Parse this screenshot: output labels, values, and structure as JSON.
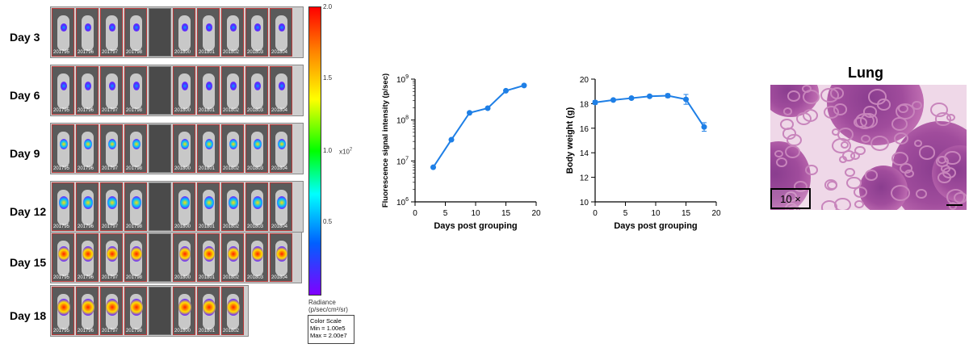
{
  "days": [
    "Day 3",
    "Day 6",
    "Day 9",
    "Day 12",
    "Day 15",
    "Day 18"
  ],
  "colorbar": {
    "ticks": [
      "2.0",
      "1.5",
      "1.0",
      "0.5"
    ],
    "multiplier": "x10",
    "exponent": "7",
    "unit_label": "Radiance",
    "unit_value": "(p/sec/cm²/sr)",
    "scale_title": "Color Scale",
    "scale_min": "Min = 1.00e5",
    "scale_max": "Max = 2.00e7"
  },
  "mouse_ids": [
    "201795",
    "201796",
    "201797",
    "201798",
    "201799",
    "201800",
    "201801",
    "201802",
    "201803",
    "201804"
  ],
  "chart_data": [
    {
      "type": "line",
      "xlabel": "Days post grouping",
      "ylabel": "Fluorescence signal intensity (p/sec)",
      "x": [
        3,
        6,
        9,
        12,
        15,
        18
      ],
      "y": [
        7000000,
        33000000,
        150000000,
        195000000,
        520000000,
        700000000
      ],
      "xlim": [
        0,
        20
      ],
      "ylim": [
        1000000,
        1000000000
      ],
      "yscale": "log",
      "xticks": [
        "0",
        "5",
        "10",
        "15",
        "20"
      ],
      "yticks": [
        {
          "base": "10",
          "exp": "6"
        },
        {
          "base": "10",
          "exp": "7"
        },
        {
          "base": "10",
          "exp": "8"
        },
        {
          "base": "10",
          "exp": "9"
        }
      ],
      "color": "#1e7fe6"
    },
    {
      "type": "line",
      "xlabel": "Days post grouping",
      "ylabel": "Body weight (g)",
      "x": [
        0,
        3,
        6,
        9,
        12,
        15,
        18
      ],
      "y": [
        18.1,
        18.3,
        18.45,
        18.6,
        18.65,
        18.35,
        16.1
      ],
      "err": [
        0.15,
        0.1,
        0.1,
        0.1,
        0.15,
        0.4,
        0.35
      ],
      "xlim": [
        0,
        20
      ],
      "ylim": [
        10,
        20
      ],
      "xticks": [
        "0",
        "5",
        "10",
        "15",
        "20"
      ],
      "yticks": [
        "10",
        "12",
        "14",
        "16",
        "18",
        "20"
      ],
      "color": "#1e7fe6"
    }
  ],
  "histology": {
    "title": "Lung",
    "magnification": "10 ×"
  }
}
